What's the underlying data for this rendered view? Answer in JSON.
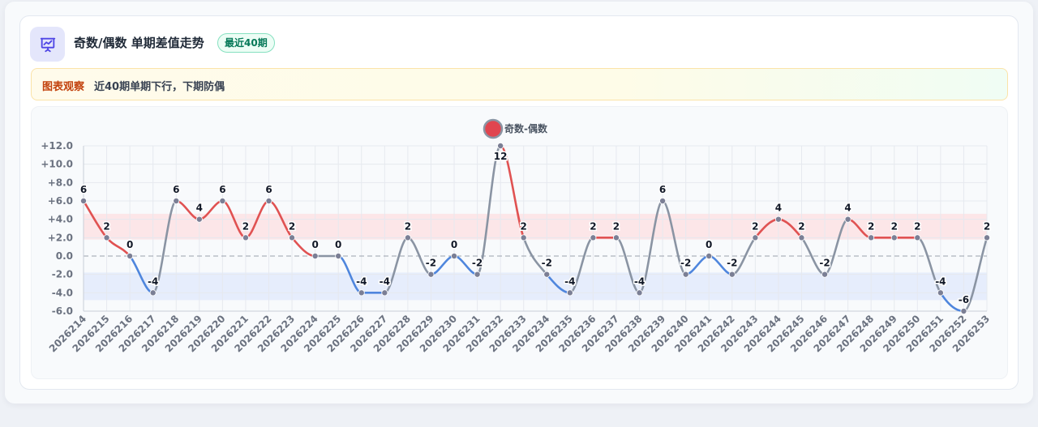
{
  "header": {
    "title": "奇数/偶数 单期差值走势",
    "badge": "最近40期",
    "icon": "chart-presentation-icon"
  },
  "note": {
    "label": "图表观察",
    "text": "近40期单期下行，下期防偶"
  },
  "colors": {
    "positive": "#e05252",
    "negative": "#4f86dd",
    "neutral": "#8a94a3",
    "positive_band": "#fde2e4",
    "negative_band": "#e3eafb",
    "point": "#7b7f95"
  },
  "chart_data": {
    "type": "line",
    "title": "",
    "xlabel": "",
    "ylabel": "",
    "legend": {
      "name": "奇数-偶数",
      "position": "top-center"
    },
    "ylim": [
      -6,
      12
    ],
    "yticks": [
      "+12.0",
      "+10.0",
      "+8.0",
      "+6.0",
      "+4.0",
      "+2.0",
      "0.0",
      "-2.0",
      "-4.0",
      "-6.0"
    ],
    "ytick_values": [
      12,
      10,
      8,
      6,
      4,
      2,
      0,
      -2,
      -4,
      -6
    ],
    "bands": [
      {
        "from": 1.8,
        "to": 4.6,
        "kind": "positive"
      },
      {
        "from": -4.8,
        "to": -1.8,
        "kind": "negative"
      }
    ],
    "grid": true,
    "series": [
      {
        "name": "奇数-偶数",
        "x": [
          "2026214",
          "2026215",
          "2026216",
          "2026217",
          "2026218",
          "2026219",
          "2026220",
          "2026221",
          "2026222",
          "2026223",
          "2026224",
          "2026225",
          "2026226",
          "2026227",
          "2026228",
          "2026229",
          "2026230",
          "2026231",
          "2026232",
          "2026233",
          "2026234",
          "2026235",
          "2026236",
          "2026237",
          "2026238",
          "2026239",
          "2026240",
          "2026241",
          "2026242",
          "2026243",
          "2026244",
          "2026245",
          "2026246",
          "2026247",
          "2026248",
          "2026249",
          "2026250",
          "2026251",
          "2026252",
          "2026253"
        ],
        "values": [
          6,
          2,
          0,
          -4,
          6,
          4,
          6,
          2,
          6,
          2,
          0,
          0,
          -4,
          -4,
          2,
          -2,
          0,
          -2,
          12,
          2,
          -2,
          -4,
          2,
          2,
          -4,
          6,
          -2,
          0,
          -2,
          2,
          4,
          2,
          -2,
          4,
          2,
          2,
          2,
          -4,
          -6,
          2
        ],
        "value_labels": [
          "6",
          "2",
          "0",
          "-4",
          "6",
          "4",
          "6",
          "2",
          "6",
          "2",
          "0",
          "0",
          "-4",
          "-4",
          "2",
          "-2",
          "0",
          "-2",
          "12",
          "2",
          "-2",
          "-4",
          "2",
          "2",
          "-4",
          "6",
          "-2",
          "0",
          "-2",
          "2",
          "4",
          "2",
          "-2",
          "4",
          "2",
          "2",
          "2",
          "-4",
          "-6",
          "2"
        ]
      }
    ]
  }
}
